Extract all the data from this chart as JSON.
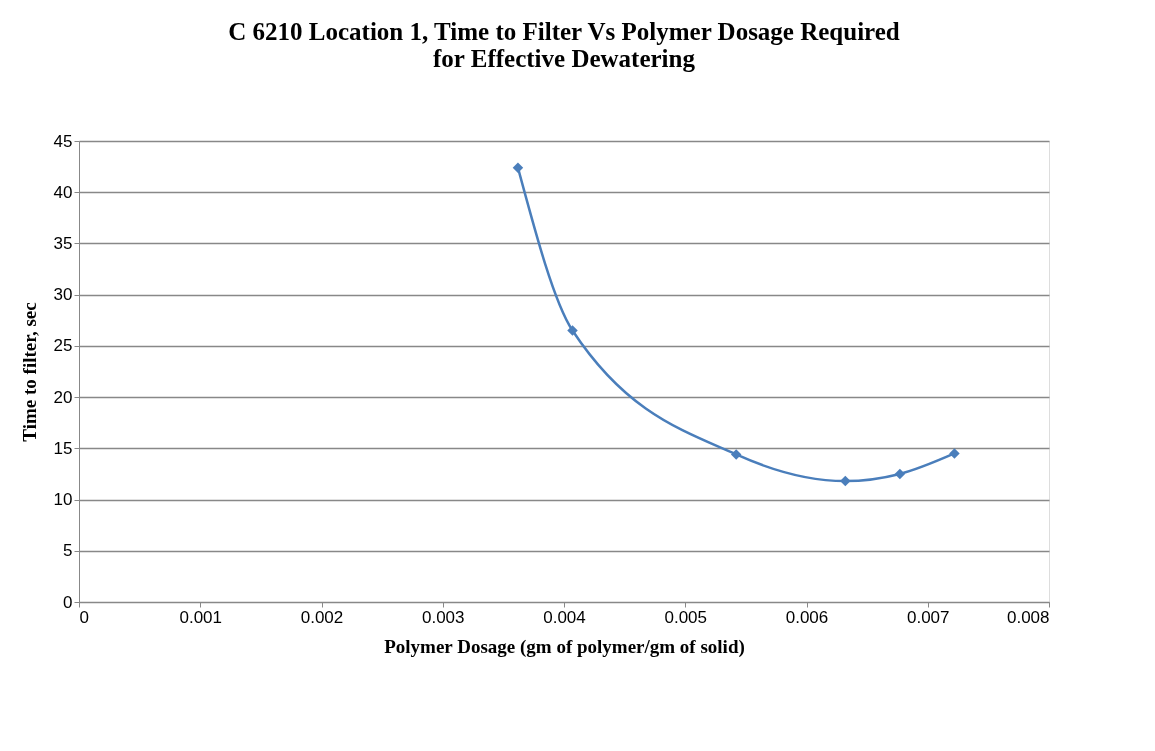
{
  "chart_data": {
    "type": "line",
    "title": [
      "C 6210 Location 1, Time to Filter Vs Polymer Dosage Required",
      "for Effective Dewatering"
    ],
    "xlabel": "Polymer Dosage (gm of polymer/gm of solid)",
    "ylabel": "Time to filter, sec",
    "x": [
      0.00362,
      0.00407,
      0.00542,
      0.00632,
      0.00677,
      0.00722
    ],
    "series": [
      {
        "color": "#4a7ebb",
        "values": [
          42.4,
          26.5,
          14.4,
          11.8,
          12.5,
          14.5
        ]
      }
    ],
    "xlim": [
      0,
      0.008
    ],
    "xticks": [
      0,
      0.001,
      0.002,
      0.003,
      0.004,
      0.005,
      0.006,
      0.007,
      0.008
    ],
    "ylim": [
      0,
      45
    ],
    "yticks": [
      0,
      5,
      10,
      15,
      20,
      25,
      30,
      35,
      40,
      45
    ],
    "grid": "y",
    "marker": "diamond",
    "line_style": "solid"
  }
}
